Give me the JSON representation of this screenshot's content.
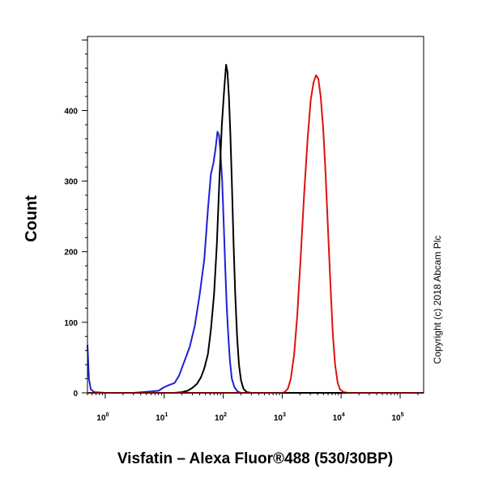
{
  "chart_data": {
    "type": "line",
    "title": "",
    "xlabel": "Visfatin – Alexa Fluor®488 (530/30BP)",
    "ylabel": "Count",
    "x_scale": "log",
    "xlim": [
      0.5,
      250000
    ],
    "ylim": [
      0,
      505
    ],
    "x_ticks": [
      {
        "value": 1,
        "base": "10",
        "exp": "0"
      },
      {
        "value": 10,
        "base": "10",
        "exp": "1"
      },
      {
        "value": 100,
        "base": "10",
        "exp": "2"
      },
      {
        "value": 1000,
        "base": "10",
        "exp": "3"
      },
      {
        "value": 10000,
        "base": "10",
        "exp": "4"
      },
      {
        "value": 100000,
        "base": "10",
        "exp": "5"
      }
    ],
    "y_ticks": [
      0,
      100,
      200,
      300,
      400
    ],
    "annotation": "Copyright (c) 2018 Abcam Plc",
    "grid": false,
    "series": [
      {
        "color": "#1f1fd6",
        "points": [
          [
            0.5,
            68
          ],
          [
            0.53,
            20
          ],
          [
            0.57,
            5
          ],
          [
            0.65,
            1
          ],
          [
            1,
            0
          ],
          [
            3,
            0
          ],
          [
            6,
            2
          ],
          [
            8,
            3
          ],
          [
            10,
            8
          ],
          [
            12,
            11
          ],
          [
            15,
            14
          ],
          [
            18,
            25
          ],
          [
            22,
            45
          ],
          [
            27,
            65
          ],
          [
            33,
            95
          ],
          [
            40,
            140
          ],
          [
            48,
            190
          ],
          [
            55,
            260
          ],
          [
            62,
            310
          ],
          [
            68,
            325
          ],
          [
            74,
            345
          ],
          [
            80,
            370
          ],
          [
            85,
            365
          ],
          [
            90,
            340
          ],
          [
            96,
            300
          ],
          [
            102,
            240
          ],
          [
            108,
            180
          ],
          [
            115,
            120
          ],
          [
            122,
            80
          ],
          [
            130,
            45
          ],
          [
            140,
            20
          ],
          [
            155,
            8
          ],
          [
            175,
            2
          ],
          [
            200,
            0
          ],
          [
            300,
            0
          ],
          [
            1000,
            0
          ],
          [
            10000,
            0
          ],
          [
            250000,
            0
          ]
        ]
      },
      {
        "color": "#000000",
        "points": [
          [
            0.5,
            0
          ],
          [
            10,
            0
          ],
          [
            15,
            0
          ],
          [
            20,
            1
          ],
          [
            25,
            3
          ],
          [
            30,
            7
          ],
          [
            36,
            13
          ],
          [
            42,
            22
          ],
          [
            48,
            35
          ],
          [
            55,
            55
          ],
          [
            62,
            90
          ],
          [
            70,
            140
          ],
          [
            78,
            210
          ],
          [
            86,
            300
          ],
          [
            95,
            380
          ],
          [
            104,
            430
          ],
          [
            112,
            465
          ],
          [
            118,
            455
          ],
          [
            125,
            420
          ],
          [
            132,
            370
          ],
          [
            140,
            300
          ],
          [
            150,
            210
          ],
          [
            160,
            140
          ],
          [
            172,
            80
          ],
          [
            185,
            40
          ],
          [
            200,
            18
          ],
          [
            220,
            6
          ],
          [
            250,
            1
          ],
          [
            300,
            0
          ],
          [
            1000,
            0
          ],
          [
            250000,
            0
          ]
        ]
      },
      {
        "color": "#dd1111",
        "points": [
          [
            0.5,
            0
          ],
          [
            1000,
            0
          ],
          [
            1100,
            1
          ],
          [
            1250,
            6
          ],
          [
            1400,
            20
          ],
          [
            1600,
            55
          ],
          [
            1800,
            110
          ],
          [
            2050,
            190
          ],
          [
            2350,
            280
          ],
          [
            2700,
            360
          ],
          [
            3050,
            415
          ],
          [
            3400,
            440
          ],
          [
            3750,
            450
          ],
          [
            4100,
            445
          ],
          [
            4500,
            420
          ],
          [
            4950,
            375
          ],
          [
            5450,
            310
          ],
          [
            6000,
            230
          ],
          [
            6600,
            150
          ],
          [
            7200,
            85
          ],
          [
            7900,
            40
          ],
          [
            8700,
            15
          ],
          [
            9500,
            5
          ],
          [
            11000,
            1
          ],
          [
            13000,
            0
          ],
          [
            250000,
            0
          ]
        ]
      }
    ]
  }
}
